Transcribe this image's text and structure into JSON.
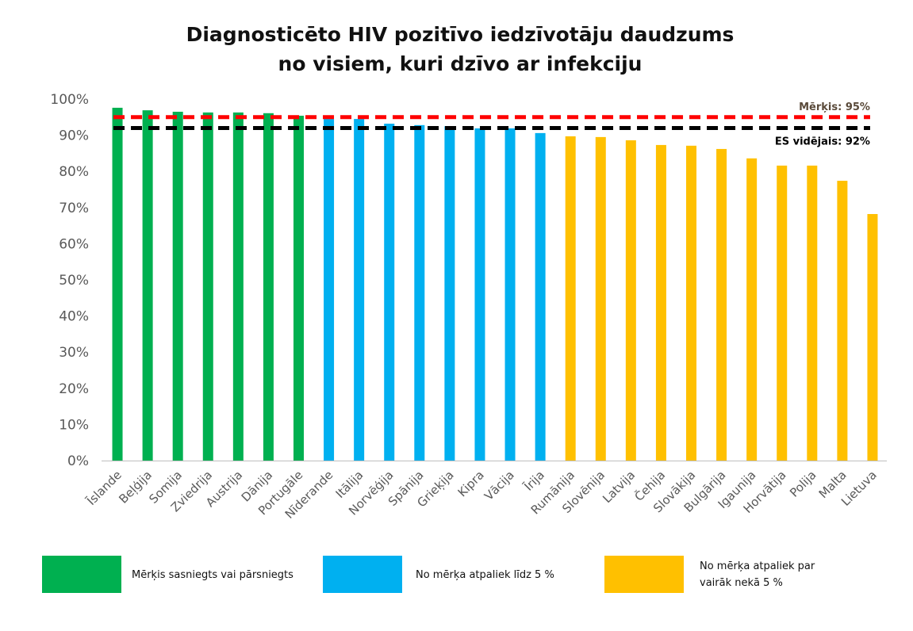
{
  "chart_data": {
    "type": "bar",
    "title": [
      "Diagnosticēto HIV pozitīvo iedzīvotāju daudzums",
      "no visiem, kuri dzīvo ar infekciju"
    ],
    "xlabel": "",
    "ylabel": "",
    "ylim": [
      0,
      100
    ],
    "yticks": [
      "0%",
      "10%",
      "20%",
      "30%",
      "40%",
      "50%",
      "60%",
      "70%",
      "80%",
      "90%",
      "100%"
    ],
    "categories": [
      "Īslande",
      "Beļģija",
      "Somija",
      "Zviedrija",
      "Austrija",
      "Dānija",
      "Portugāle",
      "Nīderande",
      "Itālija",
      "Norvēģija",
      "Spānija",
      "Grieķija",
      "Kipra",
      "Vācija",
      "Īrija",
      "Rumānija",
      "Slovēnija",
      "Latvija",
      "Čehija",
      "Slovākija",
      "Bulgārija",
      "Igaunija",
      "Horvātija",
      "Polija",
      "Malta",
      "Lietuva"
    ],
    "values": [
      97.6,
      96.9,
      96.5,
      96.3,
      96.3,
      96.1,
      95.4,
      94.5,
      94.5,
      93.2,
      92.8,
      92.5,
      91.9,
      91.9,
      90.6,
      89.7,
      89.5,
      88.6,
      87.3,
      87.1,
      86.2,
      83.6,
      81.6,
      81.6,
      77.4,
      68.2
    ],
    "groups": [
      0,
      0,
      0,
      0,
      0,
      0,
      0,
      1,
      1,
      1,
      1,
      1,
      1,
      1,
      1,
      2,
      2,
      2,
      2,
      2,
      2,
      2,
      2,
      2,
      2,
      2
    ],
    "reference_lines": [
      {
        "label": "Mērķis: 95%",
        "value": 95,
        "color": "#ff0000",
        "text_color": "#5a4a3a"
      },
      {
        "label": "ES vidējais: 92%",
        "value": 92,
        "color": "#000000",
        "text_color": "#000000"
      }
    ],
    "legend": [
      {
        "label": [
          "Mērķis sasniegts vai pārsniegts"
        ],
        "color": "#00b050"
      },
      {
        "label": [
          "No mērķa atpaliek līdz 5 %"
        ],
        "color": "#00b0f0"
      },
      {
        "label": [
          "No mērķa atpaliek par",
          "vairāk nekā 5 %"
        ],
        "color": "#ffc000"
      }
    ],
    "legend_position": "bottom",
    "grid": false
  }
}
